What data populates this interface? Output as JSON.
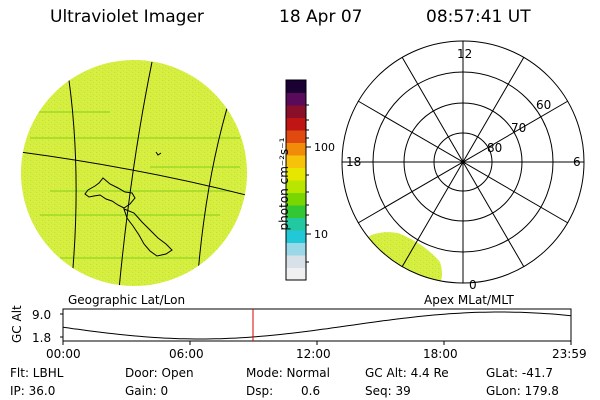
{
  "header": {
    "instrument": "Ultraviolet Imager",
    "date": "18 Apr 07",
    "time": "08:57:41 UT"
  },
  "colorbar": {
    "unit": "photon cm⁻²s⁻¹",
    "ticks": [
      "100",
      "10"
    ],
    "scale": "log",
    "colors": [
      "#1a0033",
      "#5a0a5a",
      "#8a0f2a",
      "#c01515",
      "#e04a10",
      "#f28a0a",
      "#f6c20a",
      "#e6e600",
      "#b8e600",
      "#7ad600",
      "#33c833",
      "#22c8a0",
      "#22c8d8",
      "#99d8e6",
      "#d8e0e8",
      "#f0f0f0"
    ]
  },
  "polar": {
    "mlt_labels": [
      "12",
      "18",
      "6",
      "0"
    ],
    "mlat_labels": [
      "60",
      "70",
      "80"
    ]
  },
  "timeline": {
    "left_label": "Geographic Lat/Lon",
    "right_label": "Apex MLat/MLT",
    "yaxis_title": "GC Alt",
    "ymax": "9.0",
    "ymin": "1.8",
    "times": [
      "00:00",
      "06:00",
      "12:00",
      "18:00",
      "23:59"
    ],
    "current_time_fraction": 0.374,
    "marker_color": "#dd0000"
  },
  "info": {
    "flt": "Flt: LBHL",
    "ip": "IP: 36.0",
    "door": "Door: Open",
    "gain": "Gain:  0",
    "mode": "Mode: Normal",
    "dsp_label": "Dsp:",
    "dsp_value": "0.6",
    "gcalt": "GC Alt: 4.4 Re",
    "seq": "Seq: 39",
    "glat": "GLat: -41.7",
    "glon": "GLon: 179.8"
  },
  "colors": {
    "image_fill": "#d6ee40",
    "image_texture": "#a8dc2a"
  }
}
